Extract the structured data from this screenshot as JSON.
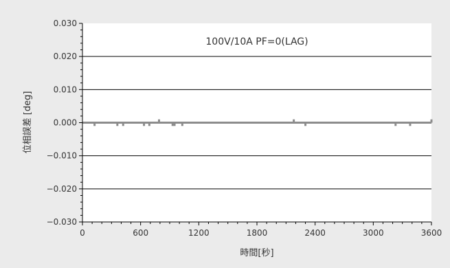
{
  "chart_data": {
    "type": "scatter",
    "annotation": "100V/10A PF=0(LAG)",
    "xlabel": "時間[秒]",
    "ylabel": "位相誤差 [deg]",
    "xlim": [
      0,
      3600
    ],
    "ylim": [
      -0.03,
      0.03
    ],
    "x_ticks": [
      0,
      600,
      1200,
      1800,
      2400,
      3000,
      3600
    ],
    "x_tick_labels": [
      "0",
      "600",
      "1200",
      "1800",
      "2400",
      "3000",
      "3600"
    ],
    "y_ticks": [
      0.03,
      0.02,
      0.01,
      0.0,
      -0.01,
      -0.02,
      -0.03
    ],
    "y_tick_labels": [
      "0.030",
      "0.020",
      "0.010",
      "0.000",
      "−0.010",
      "−0.020",
      "−0.030"
    ],
    "grid": "horizontal",
    "colors": {
      "series": "#8c8c8c",
      "zero_line": "#8c8c8c",
      "grid": "#000000",
      "plot_bg": "#ffffff"
    },
    "series": [
      {
        "x": [
          0,
          125,
          360,
          420,
          635,
          690,
          790,
          840,
          930,
          950,
          1030,
          1110,
          1500,
          2100,
          2180,
          2300,
          2650,
          3230,
          3380,
          3500,
          3600
        ],
        "values": [
          0.0,
          -0.001,
          -0.001,
          -0.001,
          -0.001,
          -0.001,
          0.001,
          0.0,
          -0.001,
          -0.001,
          -0.001,
          0.0,
          0.0,
          0.0,
          0.001,
          -0.001,
          0.0,
          -0.001,
          -0.001,
          0.0,
          0.001
        ]
      }
    ]
  }
}
